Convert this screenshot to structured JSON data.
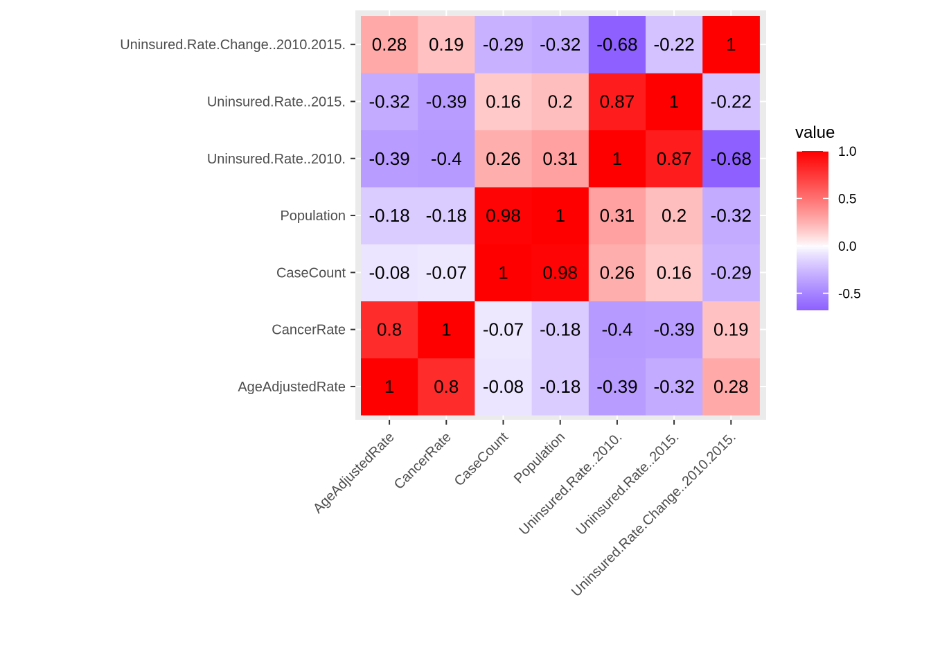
{
  "chart_data": {
    "type": "heatmap",
    "x_categories": [
      "AgeAdjustedRate",
      "CancerRate",
      "CaseCount",
      "Population",
      "Uninsured.Rate..2010.",
      "Uninsured.Rate..2015.",
      "Uninsured.Rate.Change..2010.2015."
    ],
    "y_categories": [
      "AgeAdjustedRate",
      "CancerRate",
      "CaseCount",
      "Population",
      "Uninsured.Rate..2010.",
      "Uninsured.Rate..2015.",
      "Uninsured.Rate.Change..2010.2015."
    ],
    "values": [
      [
        1,
        0.8,
        -0.08,
        -0.18,
        -0.39,
        -0.32,
        0.28
      ],
      [
        0.8,
        1,
        -0.07,
        -0.18,
        -0.4,
        -0.39,
        0.19
      ],
      [
        -0.08,
        -0.07,
        1,
        0.98,
        0.26,
        0.16,
        -0.29
      ],
      [
        -0.18,
        -0.18,
        0.98,
        1,
        0.31,
        0.2,
        -0.32
      ],
      [
        -0.39,
        -0.4,
        0.26,
        0.31,
        1,
        0.87,
        -0.68
      ],
      [
        -0.32,
        -0.39,
        0.16,
        0.2,
        0.87,
        1,
        -0.22
      ],
      [
        0.28,
        0.19,
        -0.29,
        -0.32,
        -0.68,
        -0.22,
        1
      ]
    ],
    "cell_labels": [
      [
        "1",
        "0.8",
        "-0.08",
        "-0.18",
        "-0.39",
        "-0.32",
        "0.28"
      ],
      [
        "0.8",
        "1",
        "-0.07",
        "-0.18",
        "-0.4",
        "-0.39",
        "0.19"
      ],
      [
        "-0.08",
        "-0.07",
        "1",
        "0.98",
        "0.26",
        "0.16",
        "-0.29"
      ],
      [
        "-0.18",
        "-0.18",
        "0.98",
        "1",
        "0.31",
        "0.2",
        "-0.32"
      ],
      [
        "-0.39",
        "-0.4",
        "0.26",
        "0.31",
        "1",
        "0.87",
        "-0.68"
      ],
      [
        "-0.32",
        "-0.39",
        "0.16",
        "0.2",
        "0.87",
        "1",
        "-0.22"
      ],
      [
        "0.28",
        "0.19",
        "-0.29",
        "-0.32",
        "-0.68",
        "-0.22",
        "1"
      ]
    ],
    "xlabel": "",
    "ylabel": "",
    "legend": {
      "title": "value",
      "breaks": [
        1.0,
        0.5,
        0.0,
        -0.5
      ],
      "break_labels": [
        "1.0",
        "0.5",
        "0.0",
        "-0.5"
      ],
      "range": [
        -0.68,
        1.0
      ],
      "placement": "right"
    },
    "colors": {
      "low": "#8A5CFF",
      "mid": "#FFFFFF",
      "high": "#FF0000",
      "panel_background": "#EBEBEB",
      "grid": "#FFFFFF"
    },
    "grid": true
  }
}
